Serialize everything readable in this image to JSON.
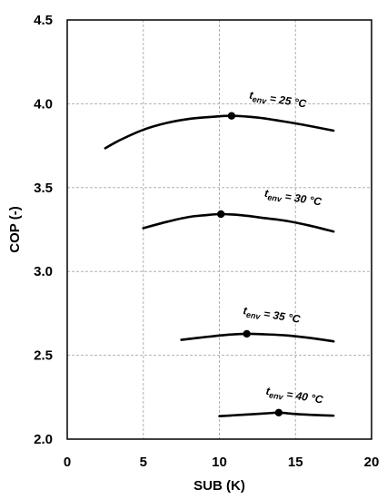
{
  "chart_data": {
    "type": "line",
    "title": "",
    "xlabel": "SUB (K)",
    "ylabel": "COP (-)",
    "xlim": [
      0,
      20
    ],
    "ylim": [
      2.0,
      4.5
    ],
    "x_ticks": [
      0,
      5,
      10,
      15,
      20
    ],
    "x_tick_labels": [
      "0",
      "5",
      "10",
      "15",
      "20"
    ],
    "y_ticks": [
      2.0,
      2.5,
      3.0,
      3.5,
      4.0,
      4.5
    ],
    "y_tick_labels": [
      "2.0",
      "2.5",
      "3.0",
      "3.5",
      "4.0",
      "4.5"
    ],
    "grid": true,
    "legend": "none",
    "series": [
      {
        "label_main": "t",
        "label_sub": "env",
        "label_rest": " = 25 °C",
        "x": [
          2.5,
          3.5,
          5,
          6.5,
          8,
          9.5,
          10.8,
          12.5,
          14,
          15.5,
          17.5
        ],
        "y": [
          3.735,
          3.785,
          3.845,
          3.885,
          3.91,
          3.922,
          3.928,
          3.918,
          3.898,
          3.875,
          3.84
        ],
        "optimum": {
          "x": 10.8,
          "y": 3.928
        }
      },
      {
        "label_main": "t",
        "label_sub": "env",
        "label_rest": " = 30 °C",
        "x": [
          5,
          6.5,
          8,
          9,
          10.1,
          11.5,
          13,
          14.5,
          16,
          17.5
        ],
        "y": [
          3.258,
          3.295,
          3.325,
          3.335,
          3.342,
          3.335,
          3.318,
          3.3,
          3.272,
          3.238
        ],
        "optimum": {
          "x": 10.1,
          "y": 3.342
        }
      },
      {
        "label_main": "t",
        "label_sub": "env",
        "label_rest": " = 35 °C",
        "x": [
          7.5,
          9,
          10.5,
          11.8,
          13,
          14.5,
          16,
          17.5
        ],
        "y": [
          2.592,
          2.608,
          2.622,
          2.628,
          2.625,
          2.618,
          2.603,
          2.583
        ],
        "optimum": {
          "x": 11.8,
          "y": 2.628
        }
      },
      {
        "label_main": "t",
        "label_sub": "env",
        "label_rest": " = 40 °C",
        "x": [
          10,
          11.5,
          13,
          13.9,
          15,
          16.5,
          17.5
        ],
        "y": [
          2.137,
          2.145,
          2.153,
          2.158,
          2.15,
          2.143,
          2.14
        ],
        "optimum": {
          "x": 13.9,
          "y": 2.158
        }
      }
    ],
    "annotations": [
      {
        "series": 0,
        "x": 13.8,
        "y": 4.005
      },
      {
        "series": 1,
        "x": 14.8,
        "y": 3.42
      },
      {
        "series": 2,
        "x": 13.4,
        "y": 2.72
      },
      {
        "series": 3,
        "x": 14.9,
        "y": 2.24
      }
    ]
  }
}
